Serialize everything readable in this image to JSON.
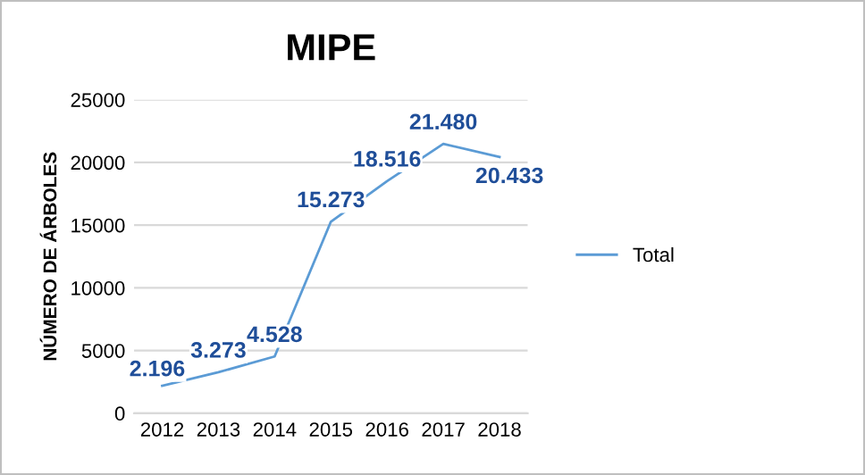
{
  "chart_data": {
    "type": "line",
    "title": "MIPE",
    "ylabel": "NÚMERO DE ÁRBOLES",
    "categories": [
      "2012",
      "2013",
      "2014",
      "2015",
      "2016",
      "2017",
      "2018"
    ],
    "series": [
      {
        "name": "Total",
        "color": "#5b9bd5",
        "values": [
          2196,
          3273,
          4528,
          15273,
          18516,
          21480,
          20433
        ],
        "value_labels": [
          "2.196",
          "3.273",
          "4.528",
          "15.273",
          "18.516",
          "21.480",
          "20.433"
        ]
      }
    ],
    "ylim": [
      0,
      25000
    ],
    "yticks": [
      0,
      5000,
      10000,
      15000,
      20000,
      25000
    ],
    "grid": "y",
    "legend": "right",
    "marker": "none",
    "line_style": "solid"
  }
}
